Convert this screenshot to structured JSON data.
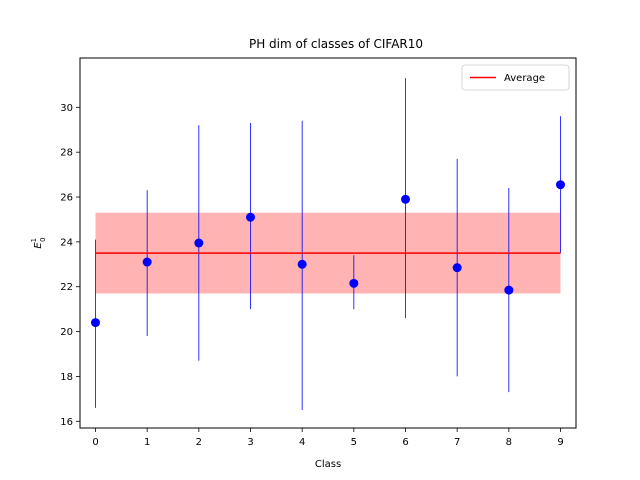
{
  "chart_data": {
    "type": "scatter",
    "title": "PH dim of classes of CIFAR10",
    "xlabel": "Class",
    "ylabel": "E",
    "ylabel_superscript": "1",
    "ylabel_subscript": "0",
    "xlim": [
      -0.3,
      9.3
    ],
    "ylim": [
      15.7,
      32.2
    ],
    "xticks": [
      0,
      1,
      2,
      3,
      4,
      5,
      6,
      7,
      8,
      9
    ],
    "yticks": [
      16,
      18,
      20,
      22,
      24,
      26,
      28,
      30
    ],
    "grid": false,
    "legend_position": "top-right",
    "series": [
      {
        "kind": "errorbar",
        "color": "#0000ff",
        "x": [
          0,
          1,
          2,
          3,
          4,
          5,
          6,
          7,
          8,
          9
        ],
        "y": [
          20.4,
          23.1,
          23.95,
          25.1,
          23.0,
          22.15,
          25.9,
          22.85,
          21.85,
          26.55
        ],
        "err_low": [
          16.6,
          19.8,
          18.7,
          21.0,
          16.5,
          21.0,
          20.6,
          18.0,
          17.3,
          23.5
        ],
        "err_high": [
          24.1,
          26.3,
          29.2,
          29.3,
          29.4,
          23.4,
          31.3,
          27.7,
          26.4,
          29.6
        ]
      },
      {
        "kind": "line",
        "name": "Average",
        "color": "#ff0000",
        "x": [
          0,
          9
        ],
        "y": [
          23.5,
          23.5
        ],
        "band": [
          21.7,
          25.3
        ],
        "band_color": "#ffb3b3"
      }
    ]
  }
}
